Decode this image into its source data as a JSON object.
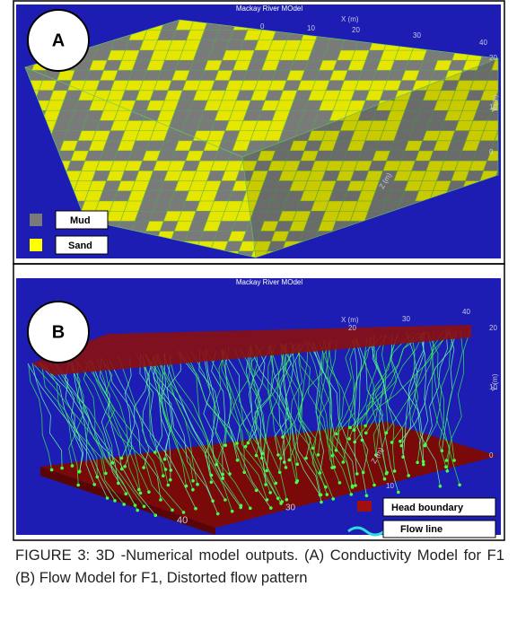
{
  "panels": [
    {
      "label": "A",
      "title": "Mackay River MOdel",
      "legend": [
        "Mud",
        "Sand"
      ],
      "x_label": "X (m)",
      "y_label": "Y (m)",
      "z_label": "Z (m)",
      "x_ticks": [
        "0",
        "10",
        "20",
        "30",
        "40"
      ],
      "y_ticks": [
        "0",
        "10",
        "20"
      ]
    },
    {
      "label": "B",
      "title": "Mackay River MOdel",
      "legend": [
        "Head boundary",
        "Flow line"
      ],
      "x_label": "X (m)",
      "y_label": "Y (m)",
      "z_label": "Z (m)",
      "x_ticks": [
        "20",
        "30",
        "40"
      ],
      "y_ticks": [
        "0",
        "10",
        "20"
      ],
      "z_ticks": [
        "10",
        "30",
        "40"
      ]
    }
  ],
  "caption": "FIGURE 3: 3D -Numerical model outputs. (A) Conductivity Model for F1 (B) Flow Model for F1, Distorted flow pattern"
}
